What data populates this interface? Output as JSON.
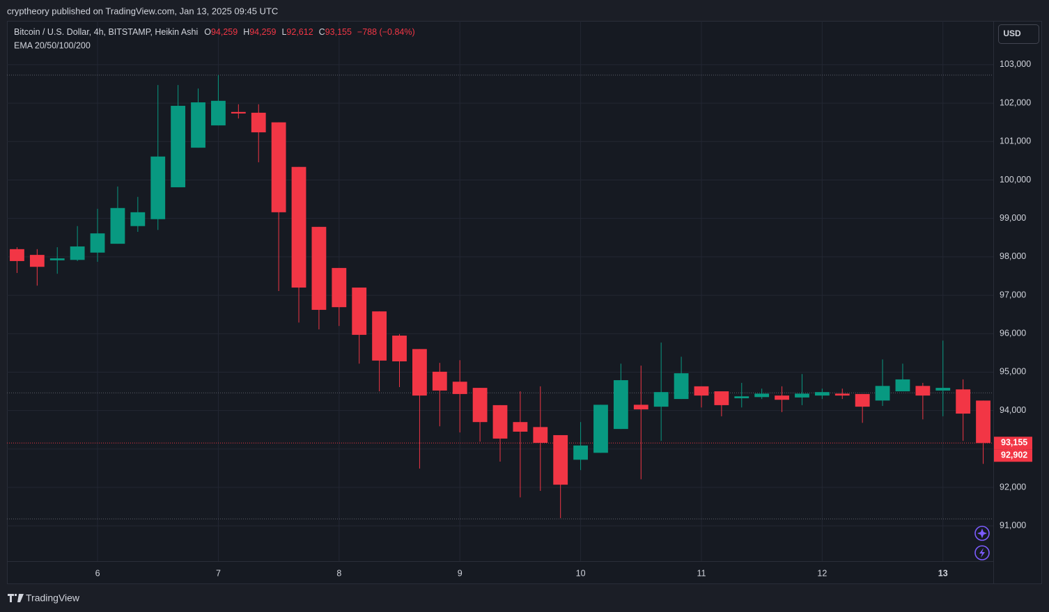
{
  "header": {
    "publisher": "cryptheory published on TradingView.com, Jan 13, 2025 09:45 UTC"
  },
  "footer": {
    "brand": "TradingView"
  },
  "chart_data": {
    "type": "candlestick",
    "title": "Bitcoin / U.S. Dollar, 4h, BITSTAMP, Heikin Ashi",
    "ohlc_legend": [
      {
        "key": "O",
        "value": 94259,
        "label": "94,259"
      },
      {
        "key": "H",
        "value": 94259,
        "label": "94,259"
      },
      {
        "key": "L",
        "value": 92612,
        "label": "92,612"
      },
      {
        "key": "C",
        "value": 93155,
        "label": "93,155"
      }
    ],
    "change": "−788 (−0.84%)",
    "indicator": "EMA 20/50/100/200",
    "currency": "USD",
    "categories": [
      null,
      null,
      null,
      null,
      "6",
      null,
      null,
      null,
      null,
      null,
      "7",
      null,
      null,
      null,
      null,
      null,
      "8",
      null,
      null,
      null,
      null,
      null,
      "9",
      null,
      null,
      null,
      null,
      null,
      "10",
      null,
      null,
      null,
      null,
      null,
      "11",
      null,
      null,
      null,
      null,
      null,
      "12",
      null,
      null,
      null,
      null,
      null,
      "13",
      null,
      null
    ],
    "open": [
      98200,
      98050,
      97910,
      97920,
      98110,
      98340,
      98800,
      98980,
      99810,
      100840,
      101420,
      101770,
      101750,
      101500,
      100340,
      98780,
      97710,
      97200,
      96580,
      95950,
      95600,
      95010,
      94750,
      94590,
      94140,
      93700,
      93570,
      93360,
      92720,
      92900,
      93520,
      94150,
      94100,
      94300,
      94630,
      94500,
      94320,
      94350,
      94390,
      94340,
      94390,
      94440,
      94430,
      94260,
      94500,
      94640,
      94520,
      94550,
      94259
    ],
    "high": [
      98250,
      98200,
      98250,
      98800,
      99250,
      99830,
      99560,
      102470,
      102470,
      102380,
      102730,
      101970,
      101970,
      101500,
      100340,
      98780,
      97710,
      97200,
      96580,
      95990,
      95600,
      95240,
      95310,
      94590,
      94140,
      94500,
      94630,
      93360,
      93700,
      94150,
      95220,
      95170,
      95770,
      95400,
      94630,
      94500,
      94720,
      94570,
      94630,
      94950,
      94570,
      94570,
      94430,
      95330,
      95220,
      94720,
      95820,
      94810,
      94259
    ],
    "low": [
      97580,
      97250,
      97560,
      97890,
      97870,
      98340,
      98650,
      98700,
      99810,
      100840,
      101420,
      101600,
      100460,
      97110,
      96290,
      96110,
      96200,
      95220,
      94500,
      94610,
      92490,
      93590,
      93430,
      93190,
      92670,
      91740,
      91910,
      91200,
      92450,
      92900,
      93520,
      92210,
      93210,
      94300,
      94080,
      93850,
      94080,
      94300,
      93960,
      94140,
      94300,
      94300,
      93680,
      94120,
      94500,
      93770,
      93850,
      93210,
      92612
    ],
    "close": [
      97890,
      97740,
      97960,
      98270,
      98610,
      99270,
      99160,
      100610,
      101930,
      102020,
      102060,
      101730,
      101240,
      99160,
      97200,
      96620,
      96690,
      95970,
      95300,
      95280,
      94390,
      94520,
      94430,
      93700,
      93270,
      93450,
      93160,
      92070,
      93090,
      94150,
      94790,
      94030,
      94480,
      94970,
      94390,
      94140,
      94370,
      94440,
      94280,
      94440,
      94480,
      94390,
      94100,
      94640,
      94810,
      94390,
      94590,
      93920,
      93155
    ],
    "up_color": "#089981",
    "down_color": "#f23645",
    "ylim": [
      89500,
      104140
    ],
    "yticks": [
      {
        "value": 91000,
        "label": "91,000"
      },
      {
        "value": 92000,
        "label": "92,000"
      },
      {
        "value": 93000,
        "label": "93,000"
      },
      {
        "value": 94000,
        "label": "94,000"
      },
      {
        "value": 95000,
        "label": "95,000"
      },
      {
        "value": 96000,
        "label": "96,000"
      },
      {
        "value": 97000,
        "label": "97,000"
      },
      {
        "value": 98000,
        "label": "98,000"
      },
      {
        "value": 99000,
        "label": "99,000"
      },
      {
        "value": 100000,
        "label": "100,000"
      },
      {
        "value": 101000,
        "label": "101,000"
      },
      {
        "value": 102000,
        "label": "102,000"
      },
      {
        "value": 103000,
        "label": "103,000"
      }
    ],
    "grid": true,
    "price_lines": [
      102730,
      94460,
      91180
    ],
    "price_tags": [
      {
        "value": 93155,
        "label": "93,155"
      },
      {
        "value": 92902,
        "label": "92,902"
      }
    ]
  }
}
